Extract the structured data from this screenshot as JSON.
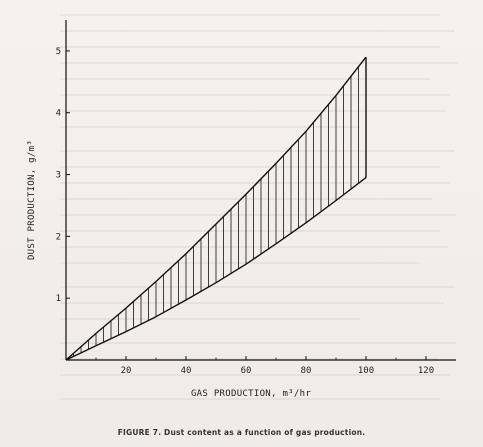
{
  "caption": "FIGURE 7.   Dust content as a function of gas production.",
  "chart_data": {
    "type": "area",
    "title": "",
    "xlabel": "GAS PRODUCTION, m³/hr",
    "ylabel": "DUST PRODUCTION, g/m³",
    "xlim": [
      0,
      130
    ],
    "ylim": [
      0,
      5.5
    ],
    "x_ticks": [
      "20",
      "40",
      "60",
      "80",
      "100",
      "120"
    ],
    "y_ticks": [
      "1",
      "2",
      "3",
      "4",
      "5"
    ],
    "grid": false,
    "fill_style": "vertical hatching",
    "series": [
      {
        "x": [
          0,
          10,
          20,
          30,
          40,
          50,
          60,
          70,
          80,
          90,
          100
        ],
        "values": [
          0,
          0.43,
          0.84,
          1.27,
          1.72,
          2.2,
          2.68,
          3.18,
          3.7,
          4.28,
          4.9
        ]
      },
      {
        "x": [
          0,
          10,
          20,
          30,
          40,
          50,
          60,
          70,
          80,
          90,
          100
        ],
        "values": [
          0,
          0.23,
          0.46,
          0.7,
          0.97,
          1.25,
          1.55,
          1.88,
          2.22,
          2.58,
          2.95
        ]
      }
    ]
  }
}
